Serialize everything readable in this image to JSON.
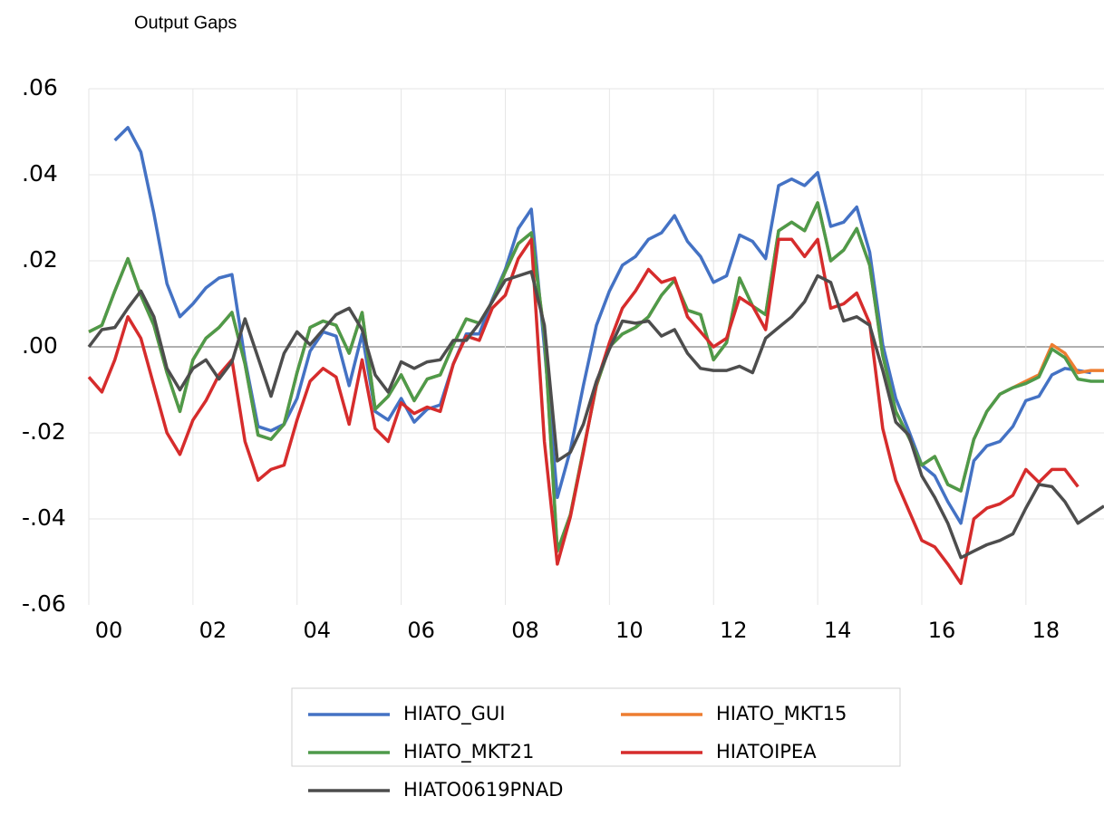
{
  "chart_data": {
    "type": "line",
    "title": "Output Gaps",
    "x": [
      2000,
      2000.25,
      2000.5,
      2000.75,
      2001,
      2001.25,
      2001.5,
      2001.75,
      2002,
      2002.25,
      2002.5,
      2002.75,
      2003,
      2003.25,
      2003.5,
      2003.75,
      2004,
      2004.25,
      2004.5,
      2004.75,
      2005,
      2005.25,
      2005.5,
      2005.75,
      2006,
      2006.25,
      2006.5,
      2006.75,
      2007,
      2007.25,
      2007.5,
      2007.75,
      2008,
      2008.25,
      2008.5,
      2008.75,
      2009,
      2009.25,
      2009.5,
      2009.75,
      2010,
      2010.25,
      2010.5,
      2010.75,
      2011,
      2011.25,
      2011.5,
      2011.75,
      2012,
      2012.25,
      2012.5,
      2012.75,
      2013,
      2013.25,
      2013.5,
      2013.75,
      2014,
      2014.25,
      2014.5,
      2014.75,
      2015,
      2015.25,
      2015.5,
      2015.75,
      2016,
      2016.25,
      2016.5,
      2016.75,
      2017,
      2017.25,
      2017.5,
      2017.75,
      2018,
      2018.25,
      2018.5,
      2018.75,
      2019,
      2019.25,
      2019.5
    ],
    "xlim": [
      2000,
      2019.5
    ],
    "xticks": [
      {
        "value": 2000,
        "label": "00"
      },
      {
        "value": 2002,
        "label": "02"
      },
      {
        "value": 2004,
        "label": "04"
      },
      {
        "value": 2006,
        "label": "06"
      },
      {
        "value": 2008,
        "label": "08"
      },
      {
        "value": 2010,
        "label": "10"
      },
      {
        "value": 2012,
        "label": "12"
      },
      {
        "value": 2014,
        "label": "14"
      },
      {
        "value": 2016,
        "label": "16"
      },
      {
        "value": 2018,
        "label": "18"
      }
    ],
    "ylim": [
      -0.06,
      0.06
    ],
    "yticks": [
      {
        "value": -0.06,
        "label": "-.06"
      },
      {
        "value": -0.04,
        "label": "-.04"
      },
      {
        "value": -0.02,
        "label": "-.02"
      },
      {
        "value": 0,
        "label": ".00"
      },
      {
        "value": 0.02,
        "label": ".02"
      },
      {
        "value": 0.04,
        "label": ".04"
      },
      {
        "value": 0.06,
        "label": ".06"
      }
    ],
    "grid": true,
    "series": [
      {
        "name": "HIATO_GUI",
        "color": "#4472c4",
        "values": [
          null,
          null,
          0.048,
          0.051,
          0.0453,
          0.031,
          0.0147,
          0.007,
          0.01,
          0.0137,
          0.016,
          0.0168,
          -0.003,
          -0.0185,
          -0.0195,
          -0.018,
          -0.012,
          -0.001,
          0.0035,
          0.0025,
          -0.009,
          0.003,
          -0.015,
          -0.017,
          -0.012,
          -0.0175,
          -0.0145,
          -0.0135,
          -0.004,
          0.003,
          0.003,
          0.011,
          0.018,
          0.0275,
          0.032,
          0.0,
          -0.035,
          -0.024,
          -0.009,
          0.005,
          0.013,
          0.019,
          0.021,
          0.025,
          0.0265,
          0.0305,
          0.0245,
          0.021,
          0.015,
          0.0165,
          0.026,
          0.0245,
          0.0205,
          0.0375,
          0.039,
          0.0375,
          0.0405,
          0.028,
          0.029,
          0.0325,
          0.022,
          0.0005,
          -0.012,
          -0.0195,
          -0.0275,
          -0.03,
          -0.036,
          -0.041,
          -0.0265,
          -0.023,
          -0.022,
          -0.0185,
          -0.0125,
          -0.0115,
          -0.0065,
          -0.005,
          -0.0055,
          -0.006,
          null
        ]
      },
      {
        "name": "HIATO_MKT15",
        "color": "#ed7d31",
        "values": [
          0.0035,
          0.005,
          0.013,
          0.0205,
          0.012,
          0.005,
          -0.006,
          -0.015,
          -0.003,
          0.002,
          0.0045,
          0.008,
          -0.004,
          -0.0205,
          -0.0215,
          -0.018,
          -0.006,
          0.0045,
          0.006,
          0.005,
          -0.0015,
          0.008,
          -0.0145,
          -0.0115,
          -0.0065,
          -0.0125,
          -0.0075,
          -0.0065,
          0.0005,
          0.0065,
          0.0055,
          0.0105,
          0.0175,
          0.024,
          0.0265,
          0.003,
          -0.0475,
          -0.039,
          -0.024,
          -0.009,
          0.0,
          0.003,
          0.0045,
          0.007,
          0.012,
          0.0155,
          0.0085,
          0.0075,
          -0.003,
          0.001,
          0.016,
          0.0095,
          0.0075,
          0.027,
          0.029,
          0.027,
          0.0335,
          0.02,
          0.0225,
          0.0275,
          0.019,
          -0.002,
          -0.015,
          -0.021,
          -0.0275,
          -0.0255,
          -0.032,
          -0.0335,
          -0.0215,
          -0.015,
          -0.011,
          -0.0095,
          -0.008,
          -0.0065,
          0.0005,
          -0.0015,
          -0.006,
          -0.0055,
          -0.0055
        ]
      },
      {
        "name": "HIATO_MKT21",
        "color": "#4e9a4a",
        "values": [
          0.0035,
          0.005,
          0.013,
          0.0205,
          0.012,
          0.005,
          -0.006,
          -0.015,
          -0.003,
          0.002,
          0.0045,
          0.008,
          -0.004,
          -0.0205,
          -0.0215,
          -0.018,
          -0.006,
          0.0045,
          0.006,
          0.005,
          -0.0015,
          0.008,
          -0.0145,
          -0.0115,
          -0.0065,
          -0.0125,
          -0.0075,
          -0.0065,
          0.0005,
          0.0065,
          0.0055,
          0.0105,
          0.0175,
          0.024,
          0.0265,
          0.003,
          -0.0475,
          -0.039,
          -0.024,
          -0.009,
          0.0,
          0.003,
          0.0045,
          0.007,
          0.012,
          0.0155,
          0.0085,
          0.0075,
          -0.003,
          0.001,
          0.016,
          0.0095,
          0.0075,
          0.027,
          0.029,
          0.027,
          0.0335,
          0.02,
          0.0225,
          0.0275,
          0.019,
          -0.002,
          -0.015,
          -0.021,
          -0.0275,
          -0.0255,
          -0.032,
          -0.0335,
          -0.0215,
          -0.015,
          -0.011,
          -0.0095,
          -0.0085,
          -0.007,
          -0.0005,
          -0.0025,
          -0.0075,
          -0.008,
          -0.008
        ]
      },
      {
        "name": "HIATOIPEA",
        "color": "#d62c2c",
        "values": [
          -0.007,
          -0.0105,
          -0.003,
          0.007,
          0.002,
          -0.009,
          -0.02,
          -0.025,
          -0.017,
          -0.0125,
          -0.0065,
          -0.003,
          -0.022,
          -0.031,
          -0.0285,
          -0.0275,
          -0.017,
          -0.008,
          -0.005,
          -0.007,
          -0.018,
          -0.003,
          -0.019,
          -0.022,
          -0.013,
          -0.0155,
          -0.014,
          -0.015,
          -0.004,
          0.0025,
          0.0015,
          0.009,
          0.012,
          0.0205,
          0.025,
          -0.022,
          -0.0505,
          -0.0395,
          -0.0245,
          -0.0085,
          0.001,
          0.009,
          0.013,
          0.018,
          0.015,
          0.016,
          0.007,
          0.0035,
          0.0,
          0.002,
          0.0115,
          0.0095,
          0.004,
          0.025,
          0.025,
          0.021,
          0.025,
          0.009,
          0.01,
          0.0125,
          0.0055,
          -0.019,
          -0.031,
          -0.038,
          -0.045,
          -0.0465,
          -0.0505,
          -0.055,
          -0.04,
          -0.0375,
          -0.0365,
          -0.0345,
          -0.0285,
          -0.0315,
          -0.0285,
          -0.0285,
          -0.0325,
          null,
          null
        ]
      },
      {
        "name": "HIATO0619PNAD",
        "color": "#4d4d4d",
        "values": [
          0.0,
          0.004,
          0.0045,
          0.009,
          0.013,
          0.007,
          -0.005,
          -0.01,
          -0.005,
          -0.003,
          -0.0075,
          -0.0035,
          0.0065,
          -0.0025,
          -0.0115,
          -0.0015,
          0.0035,
          0.0005,
          0.004,
          0.0075,
          0.009,
          0.004,
          -0.0065,
          -0.0105,
          -0.0035,
          -0.005,
          -0.0035,
          -0.003,
          0.0015,
          0.0015,
          0.0055,
          0.0105,
          0.0155,
          0.0165,
          0.0175,
          0.005,
          -0.0265,
          -0.0245,
          -0.018,
          -0.008,
          -0.0005,
          0.006,
          0.0055,
          0.006,
          0.0025,
          0.004,
          -0.0015,
          -0.005,
          -0.0055,
          -0.0055,
          -0.0045,
          -0.006,
          0.002,
          0.0045,
          0.007,
          0.0105,
          0.0165,
          0.015,
          0.006,
          0.007,
          0.005,
          -0.0055,
          -0.0175,
          -0.0205,
          -0.03,
          -0.035,
          -0.041,
          -0.049,
          -0.0475,
          -0.046,
          -0.045,
          -0.0435,
          -0.0375,
          -0.032,
          -0.0325,
          -0.036,
          -0.041,
          -0.039,
          -0.037
        ]
      }
    ]
  }
}
